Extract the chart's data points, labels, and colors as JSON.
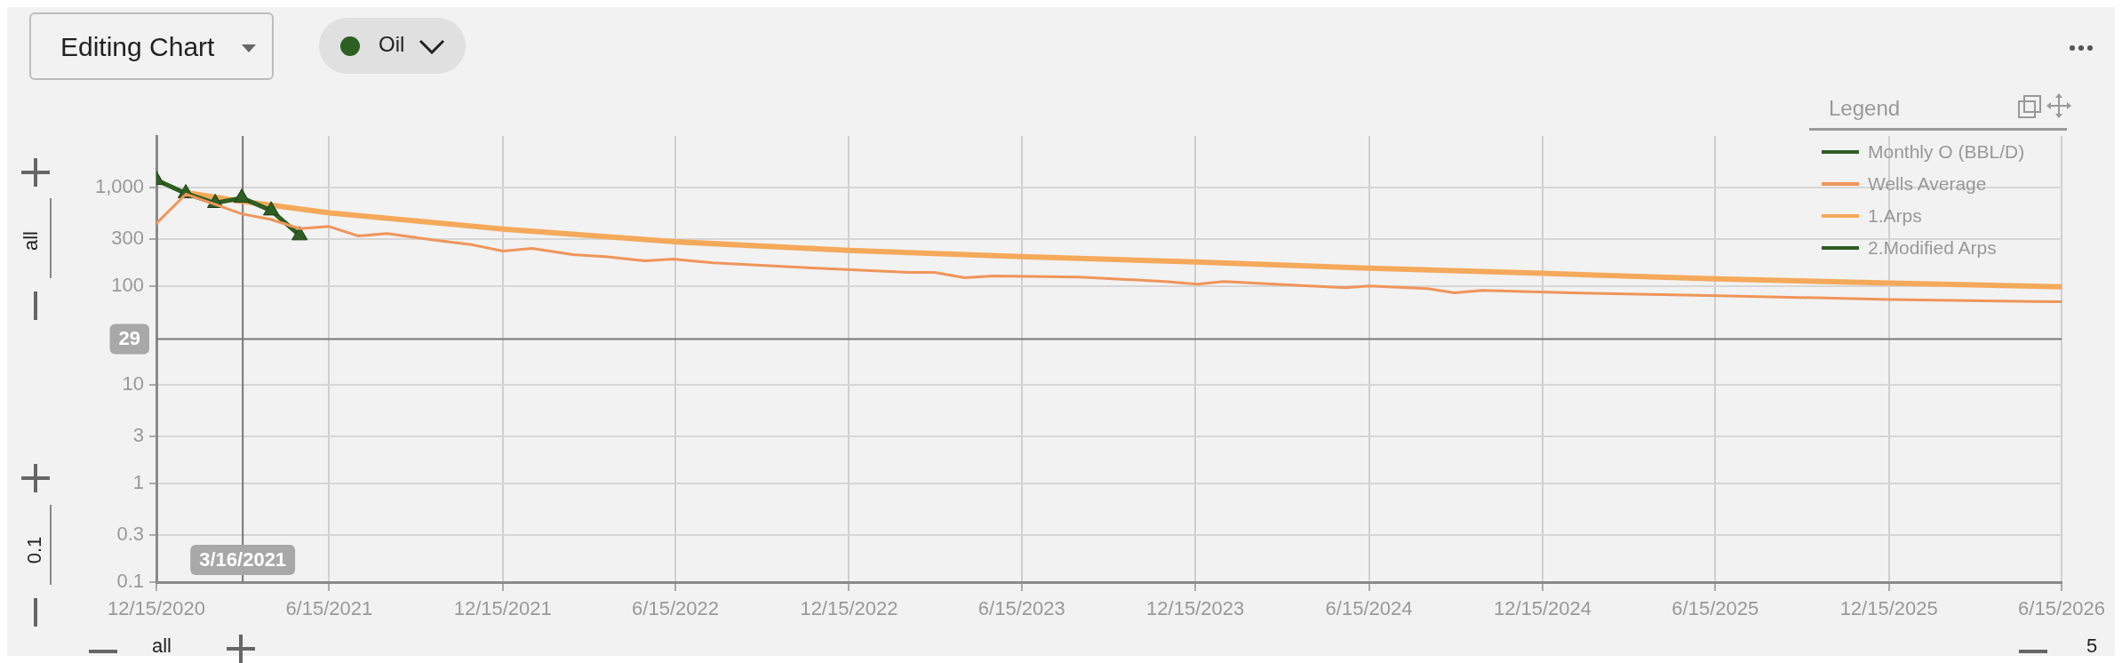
{
  "chart_data": {
    "type": "line",
    "legend_title": "Legend",
    "annotations": [
      "Editing Chart",
      "Oil",
      "all",
      "0.1",
      "all",
      "5"
    ],
    "series": [
      {
        "name": "Monthly O (BBL/D)",
        "color": "#2d5e22",
        "marker": "triangle",
        "x": [
          "2020-12-15",
          "2021-01-15",
          "2021-02-15",
          "2021-03-15",
          "2021-04-15",
          "2021-05-15"
        ],
        "values": [
          1180,
          865,
          690,
          780,
          580,
          325
        ]
      },
      {
        "name": "Wells Average",
        "color": "#f0955a",
        "x": [
          "2020-12-15",
          "2021-01-15",
          "2021-03-15",
          "2021-04-15",
          "2021-05-15",
          "2021-06-15",
          "2021-07-16",
          "2021-08-15",
          "2021-10-01",
          "2021-11-14",
          "2021-12-15",
          "2022-01-15",
          "2022-02-27",
          "2022-04-02",
          "2022-05-14",
          "2022-06-13",
          "2022-07-25",
          "2022-11-06",
          "2023-02-15",
          "2023-03-15",
          "2023-04-16",
          "2023-05-16",
          "2023-08-15",
          "2023-11-13",
          "2023-12-17",
          "2024-01-14",
          "2024-03-26",
          "2024-05-22",
          "2024-06-15",
          "2024-08-16",
          "2024-09-13",
          "2024-10-12",
          "2025-01-15",
          "2025-06-07",
          "2025-12-15",
          "2026-06-15"
        ],
        "values": [
          430,
          850,
          537,
          470,
          380,
          400,
          320,
          340,
          294,
          260,
          225,
          240,
          207,
          198,
          179,
          187,
          171,
          152,
          137,
          137,
          121,
          126,
          123,
          111,
          104,
          111,
          102,
          96,
          100,
          94,
          85,
          90,
          85,
          80,
          73,
          69
        ]
      },
      {
        "name": "1.Arps",
        "color": "#f5a95a",
        "x": [
          "2021-01-15",
          "2021-03-15",
          "2021-06-15",
          "2021-12-15",
          "2022-06-15",
          "2022-12-15",
          "2023-06-15",
          "2023-12-15",
          "2024-06-15",
          "2024-12-15",
          "2025-06-15",
          "2025-12-15",
          "2026-06-15"
        ],
        "values": [
          880,
          718,
          550,
          377,
          280,
          229,
          198,
          175,
          151,
          134,
          118,
          107,
          98
        ]
      },
      {
        "name": "2.Modified Arps",
        "color": "#2d5e22"
      }
    ],
    "xlim": [
      "2020-12-15",
      "2026-06-15"
    ],
    "xticks": [
      {
        "value": "2020-12-15",
        "label": "12/15/2020"
      },
      {
        "value": "2021-06-15",
        "label": "6/15/2021"
      },
      {
        "value": "2021-12-15",
        "label": "12/15/2021"
      },
      {
        "value": "2022-06-15",
        "label": "6/15/2022"
      },
      {
        "value": "2022-12-15",
        "label": "12/15/2022"
      },
      {
        "value": "2023-06-15",
        "label": "6/15/2023"
      },
      {
        "value": "2023-12-15",
        "label": "12/15/2023"
      },
      {
        "value": "2024-06-15",
        "label": "6/15/2024"
      },
      {
        "value": "2024-12-15",
        "label": "12/15/2024"
      },
      {
        "value": "2025-06-15",
        "label": "6/15/2025"
      },
      {
        "value": "2025-12-15",
        "label": "12/15/2025"
      },
      {
        "value": "2026-06-15",
        "label": "6/15/2026"
      }
    ],
    "ylim": [
      0.1,
      3300
    ],
    "yticks": [
      0.1,
      0.3,
      1,
      3,
      10,
      100,
      300,
      {
        "value": 1000,
        "label": "1,000"
      }
    ],
    "log": true,
    "grid": true,
    "legend": "top right",
    "marker": "none",
    "line_style": "solid",
    "ref_lines": [
      {
        "axis": "x",
        "value": "2021-03-16",
        "label": "3/16/2021",
        "color": "#777777"
      },
      {
        "axis": "y",
        "value": 29,
        "label": "29",
        "color": "#777777"
      }
    ]
  }
}
